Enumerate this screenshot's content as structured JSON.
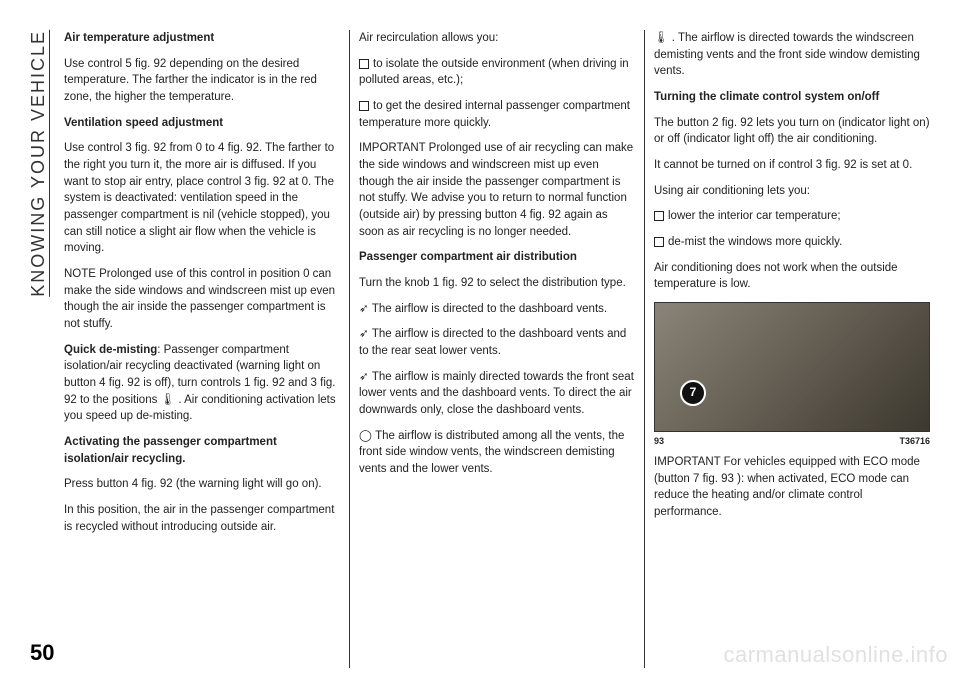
{
  "sidebar_label": "KNOWING YOUR VEHICLE",
  "page_number": "50",
  "watermark": "carmanualsonline.info",
  "col1": {
    "h1": "Air temperature adjustment",
    "p1": "Use control 5 fig. 92 depending on the desired temperature. The farther the indicator is in the red zone, the higher the temperature.",
    "h2": "Ventilation speed adjustment",
    "p2": "Use control 3 fig. 92 from 0 to 4 fig. 92. The farther to the right you turn it, the more air is diffused. If you want to stop air entry, place control 3 fig. 92 at 0. The system is deactivated: ventilation speed in the passenger compartment is nil (vehicle stopped), you can still notice a slight air flow when the vehicle is moving.",
    "p3": "NOTE Prolonged use of this control in position 0 can make the side windows and windscreen mist up even though the air inside the passenger compartment is not stuffy.",
    "h3a": "Quick de-misting",
    "p4": ": Passenger compartment isolation/air recycling deactivated (warning light on button 4 fig. 92 is off), turn controls 1 fig. 92 and 3 fig. 92 to the positions 🌡 . Air conditioning activation lets you speed up de-misting.",
    "h4": "Activating the passenger compartment isolation/air recycling.",
    "p5": "Press button 4 fig. 92 (the warning light will go on).",
    "p6": "In this position, the air in the passenger compartment is recycled without introducing outside air."
  },
  "col2": {
    "p0": "Air recirculation allows you:",
    "li1": "to isolate the outside environment (when driving in polluted areas, etc.);",
    "li2": "to get the desired internal passenger compartment temperature more quickly.",
    "p1": "IMPORTANT Prolonged use of air recycling can make the side windows and windscreen mist up even though the air inside the passenger compartment is not stuffy. We advise you to return to normal function (outside air) by pressing button 4 fig. 92 again as soon as air recycling is no longer needed.",
    "h1": "Passenger compartment air distribution",
    "p2": "Turn the knob 1 fig. 92 to select the distribution type.",
    "d1": "The airflow is directed to the dashboard vents.",
    "d2": "The airflow is directed to the dashboard vents and to the rear seat lower vents.",
    "d3": "The airflow is mainly directed towards the front seat lower vents and the dashboard vents. To direct the air downwards only, close the dashboard vents.",
    "d4": "The airflow is distributed among all the vents, the front side window vents, the windscreen demisting vents and the lower vents."
  },
  "col3": {
    "p0": ". The airflow is directed towards the windscreen demisting vents and the front side window demisting vents.",
    "h1": "Turning the climate control system on/off",
    "p1": "The button 2 fig. 92 lets you turn on (indicator light on) or off (indicator light off) the air conditioning.",
    "p2": "It cannot be turned on if control 3 fig. 92 is set at 0.",
    "p3": "Using air conditioning lets you:",
    "li1": "lower the interior car temperature;",
    "li2": "de-mist the windows more quickly.",
    "p4": "Air conditioning does not work when the outside temperature is low.",
    "fig_num": "93",
    "fig_code": "T36716",
    "knob": "7",
    "p5": "IMPORTANT For vehicles equipped with ECO mode (button 7 fig. 93 ): when activated, ECO mode can reduce the heating and/or climate control performance."
  }
}
